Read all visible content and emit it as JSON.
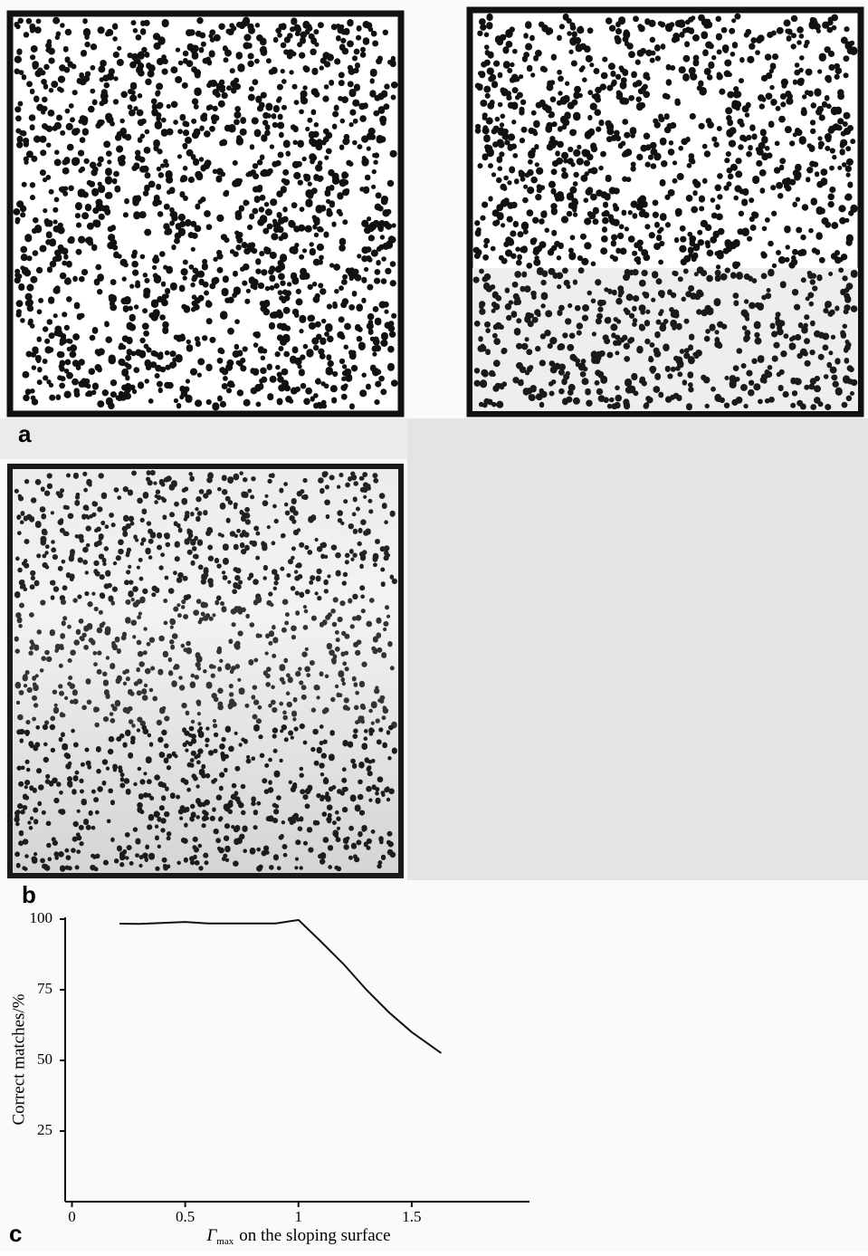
{
  "panel_labels": [
    "a",
    "b"
  ],
  "chart_data": {
    "type": "line",
    "panel_label": "c",
    "ylabel": "Correct matches/%",
    "xlabel": [
      "Γ",
      "max",
      "on the sloping surface"
    ],
    "x": [
      0.21,
      0.3,
      0.5,
      0.6,
      0.8,
      0.9,
      1.0,
      1.1,
      1.2,
      1.3,
      1.4,
      1.5,
      1.63
    ],
    "series": [
      {
        "color": "#111111",
        "values": [
          98.4,
          98.3,
          99,
          98.5,
          98.5,
          98.5,
          99.7,
          92,
          84,
          75,
          67,
          60,
          52.6
        ]
      }
    ],
    "xlim": [
      -0.03,
      2.02
    ],
    "xticks": [
      0,
      0.5,
      1,
      1.5
    ],
    "ylim": [
      0,
      100
    ],
    "yticks": [
      25,
      50,
      75,
      100
    ]
  }
}
